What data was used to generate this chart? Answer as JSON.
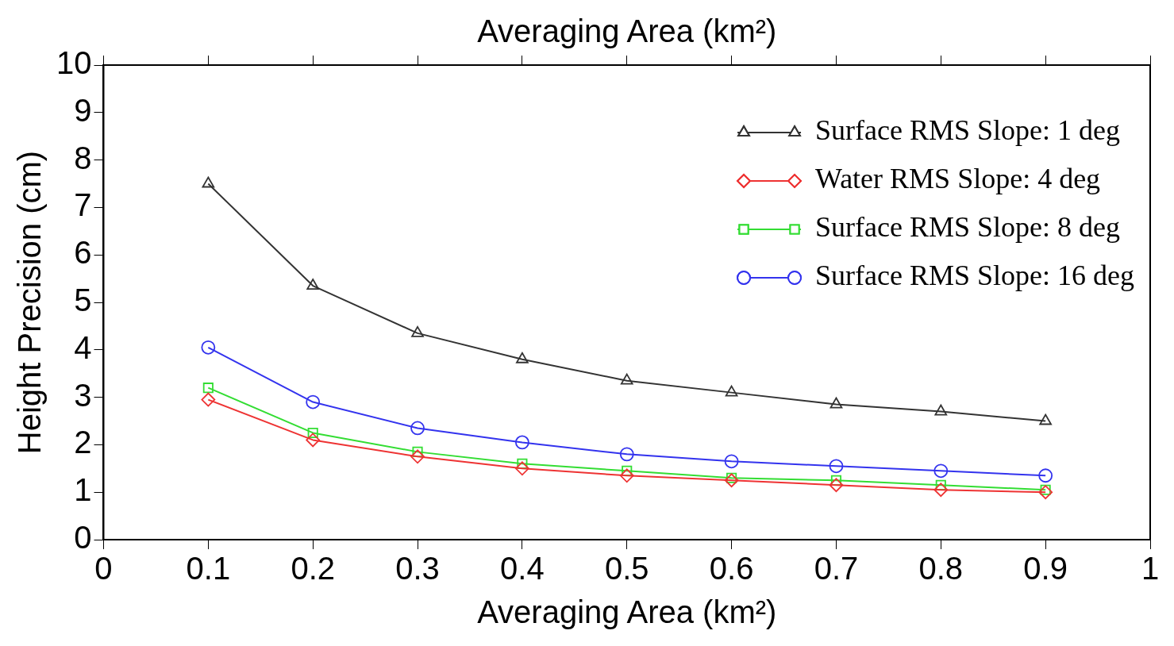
{
  "chart_data": {
    "type": "line",
    "xlabel": "Averaging Area (km²)",
    "x2label": "Averaging Area (km²)",
    "ylabel": "Height Precision (cm)",
    "x": [
      0.1,
      0.2,
      0.3,
      0.4,
      0.5,
      0.6,
      0.7,
      0.8,
      0.9
    ],
    "series": [
      {
        "name": "Surface RMS Slope: 1 deg",
        "color": "#333333",
        "marker": "triangle",
        "values": [
          7.5,
          5.35,
          4.35,
          3.8,
          3.35,
          3.1,
          2.85,
          2.7,
          2.5
        ]
      },
      {
        "name": "Water RMS Slope: 4 deg",
        "color": "#ee3333",
        "marker": "diamond",
        "values": [
          2.95,
          2.1,
          1.75,
          1.5,
          1.35,
          1.25,
          1.15,
          1.05,
          1.0
        ]
      },
      {
        "name": "Surface RMS Slope: 8 deg",
        "color": "#33dd33",
        "marker": "square",
        "values": [
          3.2,
          2.25,
          1.85,
          1.6,
          1.45,
          1.3,
          1.25,
          1.15,
          1.05
        ]
      },
      {
        "name": "Surface RMS Slope: 16 deg",
        "color": "#3333ee",
        "marker": "circle",
        "values": [
          4.05,
          2.9,
          2.35,
          2.05,
          1.8,
          1.65,
          1.55,
          1.45,
          1.35
        ]
      }
    ],
    "xlim": [
      0,
      1
    ],
    "xticks": [
      0,
      0.1,
      0.2,
      0.3,
      0.4,
      0.5,
      0.6,
      0.7,
      0.8,
      0.9,
      1
    ],
    "ylim": [
      0,
      10
    ],
    "yticks": [
      0,
      1,
      2,
      3,
      4,
      5,
      6,
      7,
      8,
      9,
      10
    ],
    "grid": false,
    "legend": "top right",
    "line_style": "solid"
  }
}
